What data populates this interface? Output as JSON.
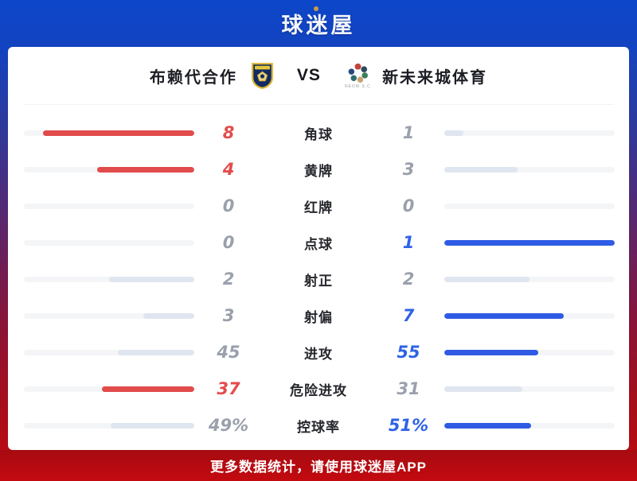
{
  "header": {
    "logo_text": "球迷屋"
  },
  "match_header": {
    "home_name": "布赖代合作",
    "vs_label": "VS",
    "away_name": "新未来城体育",
    "away_logo_caption": "NEOM S.C."
  },
  "stats": {
    "rows": [
      {
        "label": "角球",
        "home_value": "8",
        "away_value": "1",
        "home_pct": 88.9,
        "away_pct": 11.1,
        "winner": "home"
      },
      {
        "label": "黄牌",
        "home_value": "4",
        "away_value": "3",
        "home_pct": 57.1,
        "away_pct": 42.9,
        "winner": "home"
      },
      {
        "label": "红牌",
        "home_value": "0",
        "away_value": "0",
        "home_pct": 0,
        "away_pct": 0,
        "winner": "none"
      },
      {
        "label": "点球",
        "home_value": "0",
        "away_value": "1",
        "home_pct": 0,
        "away_pct": 100,
        "winner": "away"
      },
      {
        "label": "射正",
        "home_value": "2",
        "away_value": "2",
        "home_pct": 50,
        "away_pct": 50,
        "winner": "none"
      },
      {
        "label": "射偏",
        "home_value": "3",
        "away_value": "7",
        "home_pct": 30,
        "away_pct": 70,
        "winner": "away"
      },
      {
        "label": "进攻",
        "home_value": "45",
        "away_value": "55",
        "home_pct": 45,
        "away_pct": 55,
        "winner": "away"
      },
      {
        "label": "危险进攻",
        "home_value": "37",
        "away_value": "31",
        "home_pct": 54.4,
        "away_pct": 45.6,
        "winner": "home"
      },
      {
        "label": "控球率",
        "home_value": "49%",
        "away_value": "51%",
        "home_pct": 49,
        "away_pct": 51,
        "winner": "away"
      }
    ]
  },
  "footer": {
    "text": "更多数据统计，请使用球迷屋APP"
  },
  "colors": {
    "home_win_fill": "#e14b4b",
    "away_win_fill": "#2f5be4",
    "neutral_fill": "#dfe6ef",
    "home_win_text": "#e34c4c",
    "away_win_text": "#2e63e6",
    "neutral_text": "#9aa0ac",
    "accent_top": "#0c46c9",
    "accent_bottom": "#c20b10"
  },
  "chart_data": {
    "type": "bar",
    "title": "布赖代合作 VS 新未来城体育",
    "categories": [
      "角球",
      "黄牌",
      "红牌",
      "点球",
      "射正",
      "射偏",
      "进攻",
      "危险进攻",
      "控球率"
    ],
    "series": [
      {
        "name": "布赖代合作",
        "values": [
          8,
          4,
          0,
          0,
          2,
          3,
          45,
          37,
          49
        ]
      },
      {
        "name": "新未来城体育",
        "values": [
          1,
          3,
          0,
          1,
          2,
          7,
          55,
          31,
          51
        ]
      }
    ],
    "legend_position": "top",
    "grid": false
  }
}
